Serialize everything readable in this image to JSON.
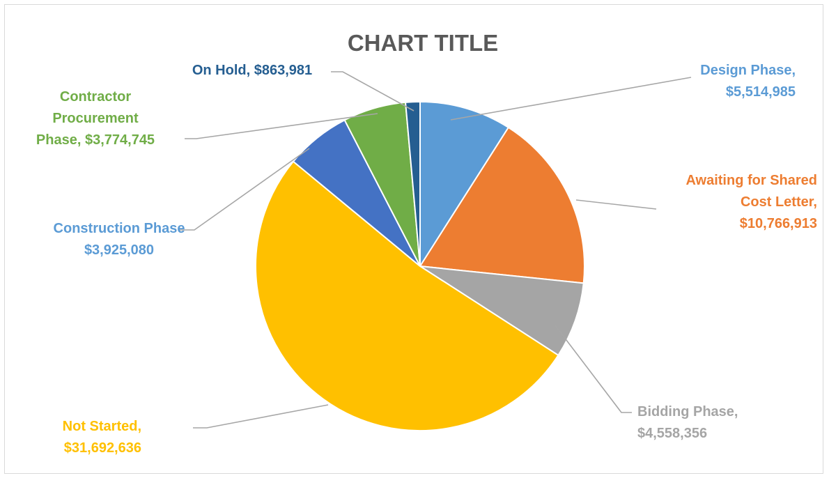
{
  "chart_data": {
    "type": "pie",
    "title": "CHART TITLE",
    "title_color": "#595959",
    "start_angle_deg": 0,
    "direction": "clockwise",
    "legend": "none",
    "slices": [
      {
        "name": "Design Phase",
        "value": 5514985,
        "value_label": "$5,514,985",
        "label_lines": [
          "Design Phase,",
          "$5,514,985"
        ],
        "color": "#5b9bd5",
        "text_color": "#5b9bd5"
      },
      {
        "name": "Awaiting for Shared Cost Letter",
        "value": 10766913,
        "value_label": "$10,766,913",
        "label_lines": [
          "Awaiting for Shared",
          "Cost Letter,",
          "$10,766,913"
        ],
        "color": "#ed7d31",
        "text_color": "#ed7d31"
      },
      {
        "name": "Bidding Phase",
        "value": 4558356,
        "value_label": "$4,558,356",
        "label_lines": [
          "Bidding Phase,",
          "$4,558,356"
        ],
        "color": "#a5a5a5",
        "text_color": "#a5a5a5"
      },
      {
        "name": "Not Started",
        "value": 31692636,
        "value_label": "$31,692,636",
        "label_lines": [
          "Not Started,",
          "$31,692,636"
        ],
        "color": "#ffc000",
        "text_color": "#ffc000"
      },
      {
        "name": "Construction Phase",
        "value": 3925080,
        "value_label": "$3,925,080",
        "label_lines": [
          "Construction Phase",
          "$3,925,080"
        ],
        "color": "#4472c4",
        "text_color": "#5b9bd5"
      },
      {
        "name": "Contractor Procurement Phase",
        "value": 3774745,
        "value_label": "$3,774,745",
        "label_lines": [
          "Contractor",
          "Procurement",
          "Phase,  $3,774,745"
        ],
        "color": "#70ad47",
        "text_color": "#70ad47"
      },
      {
        "name": "On Hold",
        "value": 863981,
        "value_label": "$863,981",
        "label_lines": [
          "On Hold,  $863,981"
        ],
        "color": "#255e91",
        "text_color": "#255e91"
      }
    ]
  }
}
